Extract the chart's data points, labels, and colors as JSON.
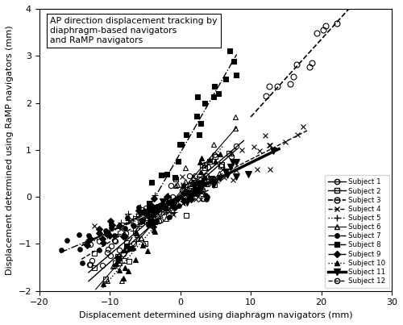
{
  "title": "AP direction displacement tracking by\ndiaphragm-based navigators\nand RaMP navigators",
  "xlabel": "Displacement determined using diaphragm navigators (mm)",
  "ylabel": "Displacement determined using RaMP navigators (mm)",
  "xlim": [
    -20,
    30
  ],
  "ylim": [
    -2,
    4
  ],
  "xticks": [
    -20,
    -10,
    0,
    10,
    20,
    30
  ],
  "yticks": [
    -2,
    -1,
    0,
    1,
    2,
    3,
    4
  ],
  "subjects": [
    {
      "name": "Subject 1",
      "marker": "o",
      "color": "black",
      "linestyle": "-",
      "linewidth": 1.0,
      "mfc": "none",
      "ms": 4.5,
      "seed": 10
    },
    {
      "name": "Subject 2",
      "marker": "s",
      "color": "black",
      "linestyle": "-",
      "linewidth": 1.0,
      "mfc": "none",
      "ms": 4.5,
      "seed": 20
    },
    {
      "name": "Subject 3",
      "marker": "o",
      "color": "black",
      "linestyle": "--",
      "linewidth": 1.2,
      "mfc": "none",
      "ms": 5.0,
      "seed": 30
    },
    {
      "name": "Subject 4",
      "marker": "x",
      "color": "black",
      "linestyle": "--",
      "linewidth": 1.0,
      "mfc": "black",
      "ms": 5.0,
      "seed": 40
    },
    {
      "name": "Subject 5",
      "marker": "+",
      "color": "black",
      "linestyle": ":",
      "linewidth": 1.0,
      "mfc": "black",
      "ms": 5.5,
      "seed": 50
    },
    {
      "name": "Subject 6",
      "marker": "^",
      "color": "black",
      "linestyle": "-",
      "linewidth": 0.8,
      "mfc": "none",
      "ms": 4.5,
      "seed": 60
    },
    {
      "name": "Subject 7",
      "marker": "o",
      "color": "black",
      "linestyle": "-.",
      "linewidth": 1.0,
      "mfc": "black",
      "ms": 4.0,
      "seed": 70
    },
    {
      "name": "Subject 8",
      "marker": "s",
      "color": "black",
      "linestyle": "-.",
      "linewidth": 1.0,
      "mfc": "black",
      "ms": 4.5,
      "seed": 80
    },
    {
      "name": "Subject 9",
      "marker": "D",
      "color": "black",
      "linestyle": "-.",
      "linewidth": 1.0,
      "mfc": "black",
      "ms": 4.0,
      "seed": 90
    },
    {
      "name": "Subject 10",
      "marker": "^",
      "color": "black",
      "linestyle": ":",
      "linewidth": 1.0,
      "mfc": "black",
      "ms": 4.5,
      "seed": 100
    },
    {
      "name": "Subject 11",
      "marker": "v",
      "color": "black",
      "linestyle": "-",
      "linewidth": 2.5,
      "mfc": "black",
      "ms": 5.5,
      "seed": 110
    },
    {
      "name": "Subject 12",
      "marker": "o",
      "color": "black",
      "linestyle": "--",
      "linewidth": 1.0,
      "mfc": "none",
      "ms": 4.5,
      "seed": 120
    }
  ],
  "subject_params": {
    "Subject 1": {
      "x_range": [
        -13,
        9
      ],
      "slope": 0.14,
      "intercept": 0.05,
      "noise": 0.25,
      "n": 30
    },
    "Subject 2": {
      "x_range": [
        -13,
        8
      ],
      "slope": 0.13,
      "intercept": -0.05,
      "noise": 0.22,
      "n": 25
    },
    "Subject 3": {
      "x_range": [
        10,
        26
      ],
      "slope": 0.165,
      "intercept": 0.1,
      "noise": 0.15,
      "n": 15
    },
    "Subject 4": {
      "x_range": [
        -14,
        18
      ],
      "slope": 0.082,
      "intercept": 0.05,
      "noise": 0.25,
      "n": 30
    },
    "Subject 5": {
      "x_range": [
        -13,
        5
      ],
      "slope": 0.08,
      "intercept": -0.02,
      "noise": 0.15,
      "n": 25
    },
    "Subject 6": {
      "x_range": [
        -12,
        8
      ],
      "slope": 0.175,
      "intercept": 0.1,
      "noise": 0.2,
      "n": 28
    },
    "Subject 7": {
      "x_range": [
        -17,
        4
      ],
      "slope": 0.068,
      "intercept": -0.05,
      "noise": 0.18,
      "n": 35
    },
    "Subject 8": {
      "x_range": [
        -9,
        8
      ],
      "slope": 0.26,
      "intercept": 0.85,
      "noise": 0.28,
      "n": 30
    },
    "Subject 9": {
      "x_range": [
        -14,
        2
      ],
      "slope": 0.072,
      "intercept": -0.08,
      "noise": 0.15,
      "n": 28
    },
    "Subject 10": {
      "x_range": [
        -11,
        6
      ],
      "slope": 0.175,
      "intercept": 0.02,
      "noise": 0.2,
      "n": 28
    },
    "Subject 11": {
      "x_range": [
        -5,
        14
      ],
      "slope": 0.082,
      "intercept": 0.0,
      "noise": 0.1,
      "n": 25
    },
    "Subject 12": {
      "x_range": [
        -14,
        4
      ],
      "slope": 0.096,
      "intercept": -0.02,
      "noise": 0.18,
      "n": 28
    }
  }
}
